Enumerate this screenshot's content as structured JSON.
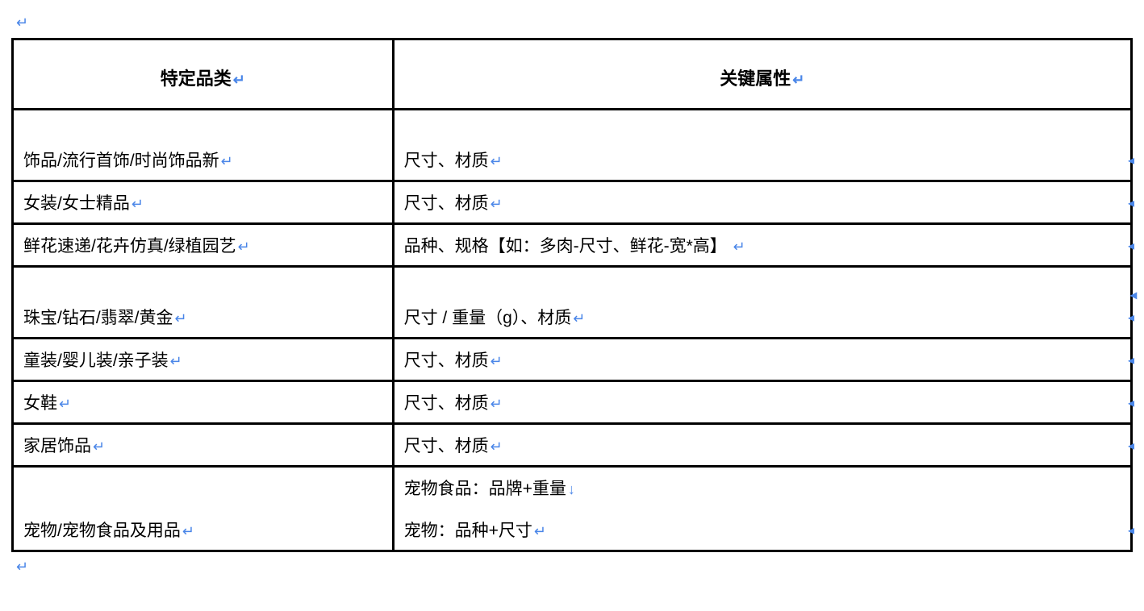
{
  "glyphs": {
    "return": "↵",
    "downreturn": "↓"
  },
  "colors": {
    "marker": "#4a86e8",
    "border": "#000000",
    "text": "#000000",
    "bg": "#ffffff"
  },
  "table": {
    "type": "table",
    "border_color": "#000000",
    "border_width": 3,
    "background_color": "#ffffff",
    "font_family": "Microsoft YaHei",
    "header_font_size": 22,
    "header_font_weight": "bold",
    "body_font_size": 21,
    "columns": [
      {
        "label": "特定品类",
        "width_pct": 34,
        "align": "left",
        "header_align": "center"
      },
      {
        "label": "关键属性",
        "width_pct": 66,
        "align": "left",
        "header_align": "center"
      }
    ],
    "rows": [
      {
        "category": "饰品/流行首饰/时尚饰品新",
        "attrs": [
          "尺寸、材质"
        ],
        "topspace": true
      },
      {
        "category": "女装/女士精品",
        "attrs": [
          "尺寸、材质"
        ],
        "topspace": false
      },
      {
        "category": "鲜花速递/花卉仿真/绿植园艺",
        "attrs": [
          "品种、规格【如：多肉-尺寸、鲜花-宽*高】 "
        ],
        "topspace": false
      },
      {
        "category": "珠宝/钻石/翡翠/黄金",
        "attrs": [
          "尺寸 / 重量（g）、材质"
        ],
        "topspace": true
      },
      {
        "category": "童装/婴儿装/亲子装",
        "attrs": [
          "尺寸、材质"
        ],
        "topspace": false
      },
      {
        "category": "女鞋",
        "attrs": [
          "尺寸、材质"
        ],
        "topspace": false
      },
      {
        "category": "家居饰品",
        "attrs": [
          "尺寸、材质"
        ],
        "topspace": false
      },
      {
        "category": "宠物/宠物食品及用品",
        "attrs": [
          "宠物食品：品牌+重量",
          "宠物：品种+尺寸"
        ],
        "topspace": false
      }
    ]
  }
}
